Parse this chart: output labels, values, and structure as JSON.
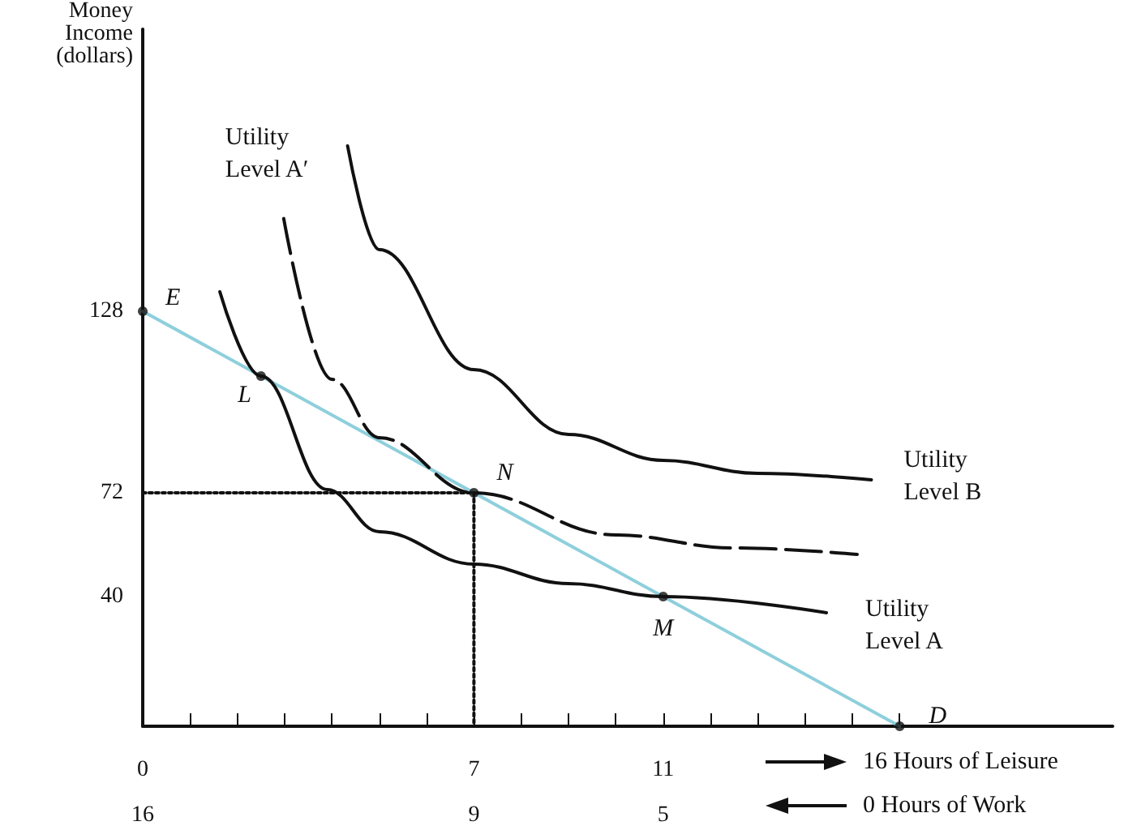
{
  "chart_data": {
    "type": "line",
    "ylabel": "Money\nIncome\n(dollars)",
    "xlabel": "16 Hours of Leisure",
    "x2label": "0 Hours of Work",
    "xlim": [
      0,
      20.5
    ],
    "ylim": [
      0,
      215
    ],
    "x2lim": [
      16,
      -4.5
    ],
    "xticks": [
      0,
      {
        "value": 1,
        "label": null
      },
      {
        "value": 2,
        "label": null
      },
      {
        "value": 3,
        "label": null
      },
      {
        "value": 4,
        "label": null
      },
      {
        "value": 5,
        "label": null
      },
      {
        "value": 6,
        "label": null
      },
      7,
      {
        "value": 8,
        "label": null
      },
      {
        "value": 9,
        "label": null
      },
      {
        "value": 10,
        "label": null
      },
      11,
      {
        "value": 12,
        "label": null
      },
      {
        "value": 13,
        "label": null
      },
      {
        "value": 14,
        "label": null
      },
      {
        "value": 15,
        "label": null
      },
      {
        "value": 16,
        "label": null
      }
    ],
    "x2ticks": [
      16,
      9,
      5
    ],
    "yticks": [
      40,
      72,
      128
    ],
    "grid": false,
    "series": [
      {
        "color": "#8ecfdc",
        "line_style": "solid",
        "marker": "none",
        "x": [
          0,
          16
        ],
        "values": [
          128,
          0
        ]
      },
      {
        "color": "#111111",
        "line_style": "solid",
        "marker": "none",
        "x": [
          1.63,
          2.5,
          3.9,
          5,
          7,
          9,
          11,
          14.45
        ],
        "values": [
          134,
          108,
          73,
          60,
          50,
          44,
          40,
          35
        ]
      },
      {
        "color": "#111111",
        "line_style": "dashed",
        "marker": "none",
        "x": [
          2.98,
          4,
          5,
          7,
          10,
          12.5,
          15.1
        ],
        "values": [
          156.6,
          107,
          89,
          72,
          59,
          55,
          53
        ]
      },
      {
        "color": "#111111",
        "line_style": "solid",
        "marker": "none",
        "x": [
          4.33,
          5,
          7,
          9,
          11,
          13,
          15.4
        ],
        "values": [
          179,
          147,
          110,
          90,
          82,
          78,
          76
        ]
      },
      {
        "color": "#111111",
        "line_style": "dotted",
        "marker": "none",
        "x": [
          0,
          7,
          7
        ],
        "values": [
          72,
          72,
          0
        ]
      },
      {
        "type": "scatter",
        "color": "#111111",
        "marker": "circle",
        "x": [
          0,
          2.5,
          7,
          11,
          16
        ],
        "values": [
          128,
          108,
          72,
          40,
          0
        ]
      }
    ],
    "annotations": [
      {
        "text": "E",
        "x": 0,
        "y": 128
      },
      {
        "text": "L",
        "x": 2.5,
        "y": 108
      },
      {
        "text": "N",
        "x": 7,
        "y": 72
      },
      {
        "text": "M",
        "x": 11,
        "y": 40
      },
      {
        "text": "D",
        "x": 16,
        "y": 0
      },
      {
        "text": "Utility\nLevel A′",
        "x": 2.98,
        "y": 156.6
      },
      {
        "text": "Utility\nLevel B",
        "x": 15.4,
        "y": 76
      },
      {
        "text": "Utility\nLevel A",
        "x": 14.45,
        "y": 35
      }
    ]
  }
}
